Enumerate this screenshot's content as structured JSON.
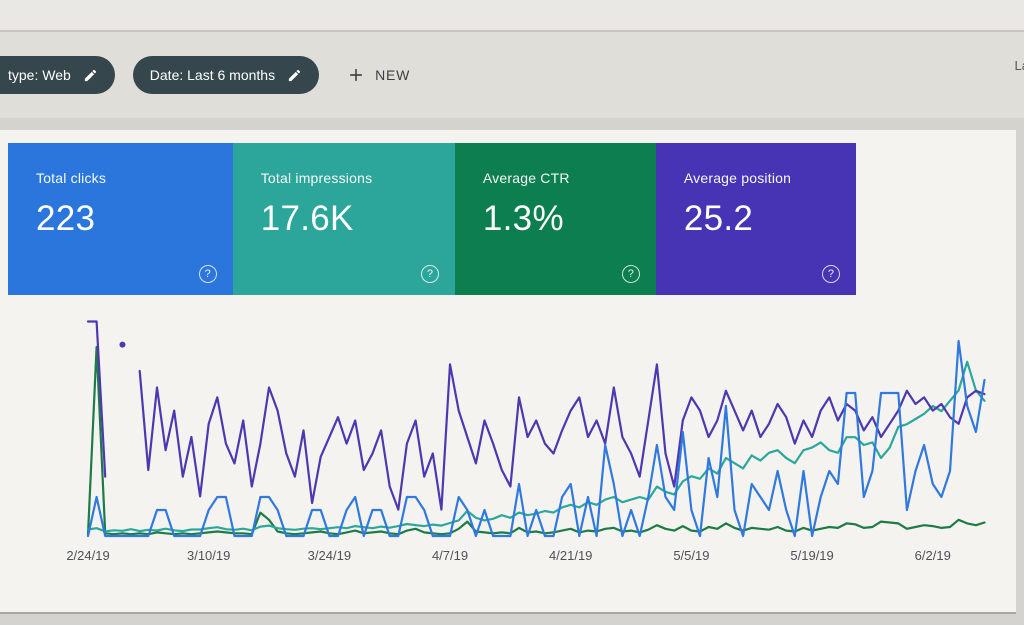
{
  "header": {
    "filter_chips": [
      {
        "label": "type: Web",
        "icon": "edit"
      },
      {
        "label": "Date: Last 6 months",
        "icon": "edit"
      }
    ],
    "new_button_label": "NEW",
    "top_right_partial_text": "La"
  },
  "metric_cards": [
    {
      "label": "Total clicks",
      "value": "223",
      "color": "#2a76dd"
    },
    {
      "label": "Total impressions",
      "value": "17.6K",
      "color": "#2ca69a"
    },
    {
      "label": "Average CTR",
      "value": "1.3%",
      "color": "#0c7e50"
    },
    {
      "label": "Average position",
      "value": "25.2",
      "color": "#4734b5"
    }
  ],
  "ui": {
    "help_glyph": "?"
  },
  "chart_data": {
    "type": "line",
    "x_unit": "day",
    "grid": "off",
    "legend": "none",
    "y_axis": "hidden (auto-scaled per series)",
    "ticks": [
      {
        "i": 0,
        "label": "2/24/19"
      },
      {
        "i": 14,
        "label": "3/10/19"
      },
      {
        "i": 28,
        "label": "3/24/19"
      },
      {
        "i": 42,
        "label": "4/7/19"
      },
      {
        "i": 56,
        "label": "4/21/19"
      },
      {
        "i": 70,
        "label": "5/5/19"
      },
      {
        "i": 84,
        "label": "5/19/19"
      },
      {
        "i": 98,
        "label": "6/2/19"
      }
    ],
    "series": [
      {
        "name": "Clicks",
        "unit": "clicks",
        "color": "#3079de",
        "total_shown": "223",
        "values": [
          0,
          3,
          0,
          0,
          0,
          0,
          0,
          0,
          2,
          2,
          0,
          0,
          0,
          0,
          2,
          3,
          3,
          0,
          0,
          0,
          3,
          3,
          2,
          0,
          0,
          0,
          2,
          2,
          0,
          0,
          2,
          3,
          0,
          2,
          2,
          0,
          0,
          3,
          3,
          2,
          0,
          0,
          0,
          3,
          2,
          0,
          2,
          0,
          0,
          0,
          4,
          0,
          2,
          0,
          0,
          3,
          4,
          0,
          3,
          0,
          7,
          4,
          0,
          2,
          0,
          3,
          7,
          3,
          2,
          8,
          2,
          0,
          6,
          3,
          10,
          2,
          0,
          4,
          3,
          2,
          5,
          2,
          0,
          5,
          0,
          3,
          5,
          4,
          11,
          11,
          3,
          5,
          11,
          11,
          11,
          2,
          5,
          7,
          4,
          3,
          5,
          15,
          10,
          8,
          12
        ]
      },
      {
        "name": "Impressions",
        "unit": "impressions",
        "color": "#2ba89b",
        "total_shown": "17.6K",
        "values": [
          25,
          30,
          18,
          22,
          20,
          26,
          19,
          24,
          21,
          28,
          22,
          19,
          25,
          25,
          30,
          34,
          26,
          24,
          28,
          22,
          36,
          40,
          30,
          26,
          24,
          28,
          30,
          26,
          30,
          34,
          30,
          38,
          34,
          30,
          36,
          32,
          38,
          46,
          42,
          38,
          44,
          40,
          50,
          60,
          96,
          70,
          60,
          66,
          80,
          70,
          90,
          80,
          86,
          96,
          90,
          110,
          120,
          110,
          130,
          120,
          140,
          150,
          130,
          140,
          150,
          140,
          190,
          170,
          160,
          210,
          230,
          220,
          260,
          240,
          300,
          280,
          260,
          310,
          290,
          320,
          330,
          300,
          280,
          330,
          340,
          360,
          330,
          320,
          380,
          380,
          350,
          360,
          300,
          340,
          420,
          430,
          450,
          470,
          500,
          480,
          520,
          560,
          670,
          560,
          520
        ]
      },
      {
        "name": "CTR",
        "unit": "%",
        "color": "#1d7c45",
        "average_shown": "1.3%",
        "values": [
          0.2,
          21,
          0.3,
          0.2,
          0.3,
          0.2,
          0.3,
          0.2,
          0.4,
          0.3,
          0.2,
          0.3,
          0.2,
          0.3,
          0.4,
          0.5,
          0.4,
          0.3,
          0.3,
          0.2,
          2.6,
          1.8,
          0.5,
          0.3,
          0.2,
          0.3,
          0.4,
          0.5,
          0.3,
          0.2,
          0.4,
          0.6,
          0.3,
          0.4,
          0.5,
          0.3,
          0.2,
          0.6,
          0.8,
          0.4,
          0.3,
          0.2,
          0.3,
          0.8,
          1.6,
          0.5,
          0.4,
          0.3,
          0.4,
          0.3,
          0.9,
          0.4,
          0.5,
          0.3,
          0.4,
          0.6,
          0.8,
          0.4,
          0.6,
          0.5,
          0.8,
          0.9,
          0.5,
          0.6,
          0.4,
          0.7,
          1.2,
          0.8,
          0.6,
          1.1,
          0.6,
          0.5,
          1.0,
          0.8,
          1.4,
          0.9,
          0.6,
          0.9,
          0.8,
          0.7,
          1.0,
          0.6,
          0.5,
          0.9,
          0.6,
          0.8,
          1.0,
          0.9,
          1.4,
          1.3,
          0.9,
          1.0,
          1.6,
          1.5,
          1.4,
          0.8,
          1.0,
          1.2,
          1.1,
          0.9,
          1.0,
          1.8,
          1.4,
          1.2,
          1.5
        ]
      },
      {
        "name": "Position",
        "unit": "position",
        "color": "#4e38b0",
        "average_shown": "25.2",
        "values": [
          65,
          65,
          18,
          null,
          58,
          null,
          50,
          20,
          45,
          26,
          38,
          18,
          30,
          12,
          34,
          42,
          28,
          22,
          35,
          15,
          28,
          45,
          38,
          25,
          18,
          32,
          10,
          24,
          30,
          36,
          28,
          35,
          20,
          25,
          32,
          15,
          8,
          28,
          35,
          18,
          25,
          8,
          52,
          38,
          30,
          22,
          35,
          28,
          20,
          15,
          42,
          30,
          35,
          28,
          25,
          32,
          38,
          42,
          30,
          35,
          28,
          45,
          30,
          25,
          18,
          35,
          52,
          25,
          15,
          35,
          42,
          38,
          30,
          35,
          44,
          38,
          32,
          38,
          30,
          34,
          40,
          36,
          28,
          35,
          30,
          38,
          42,
          35,
          40,
          38,
          32,
          36,
          30,
          34,
          38,
          44,
          40,
          42,
          38,
          40,
          36,
          34,
          42,
          44,
          43
        ]
      }
    ]
  }
}
